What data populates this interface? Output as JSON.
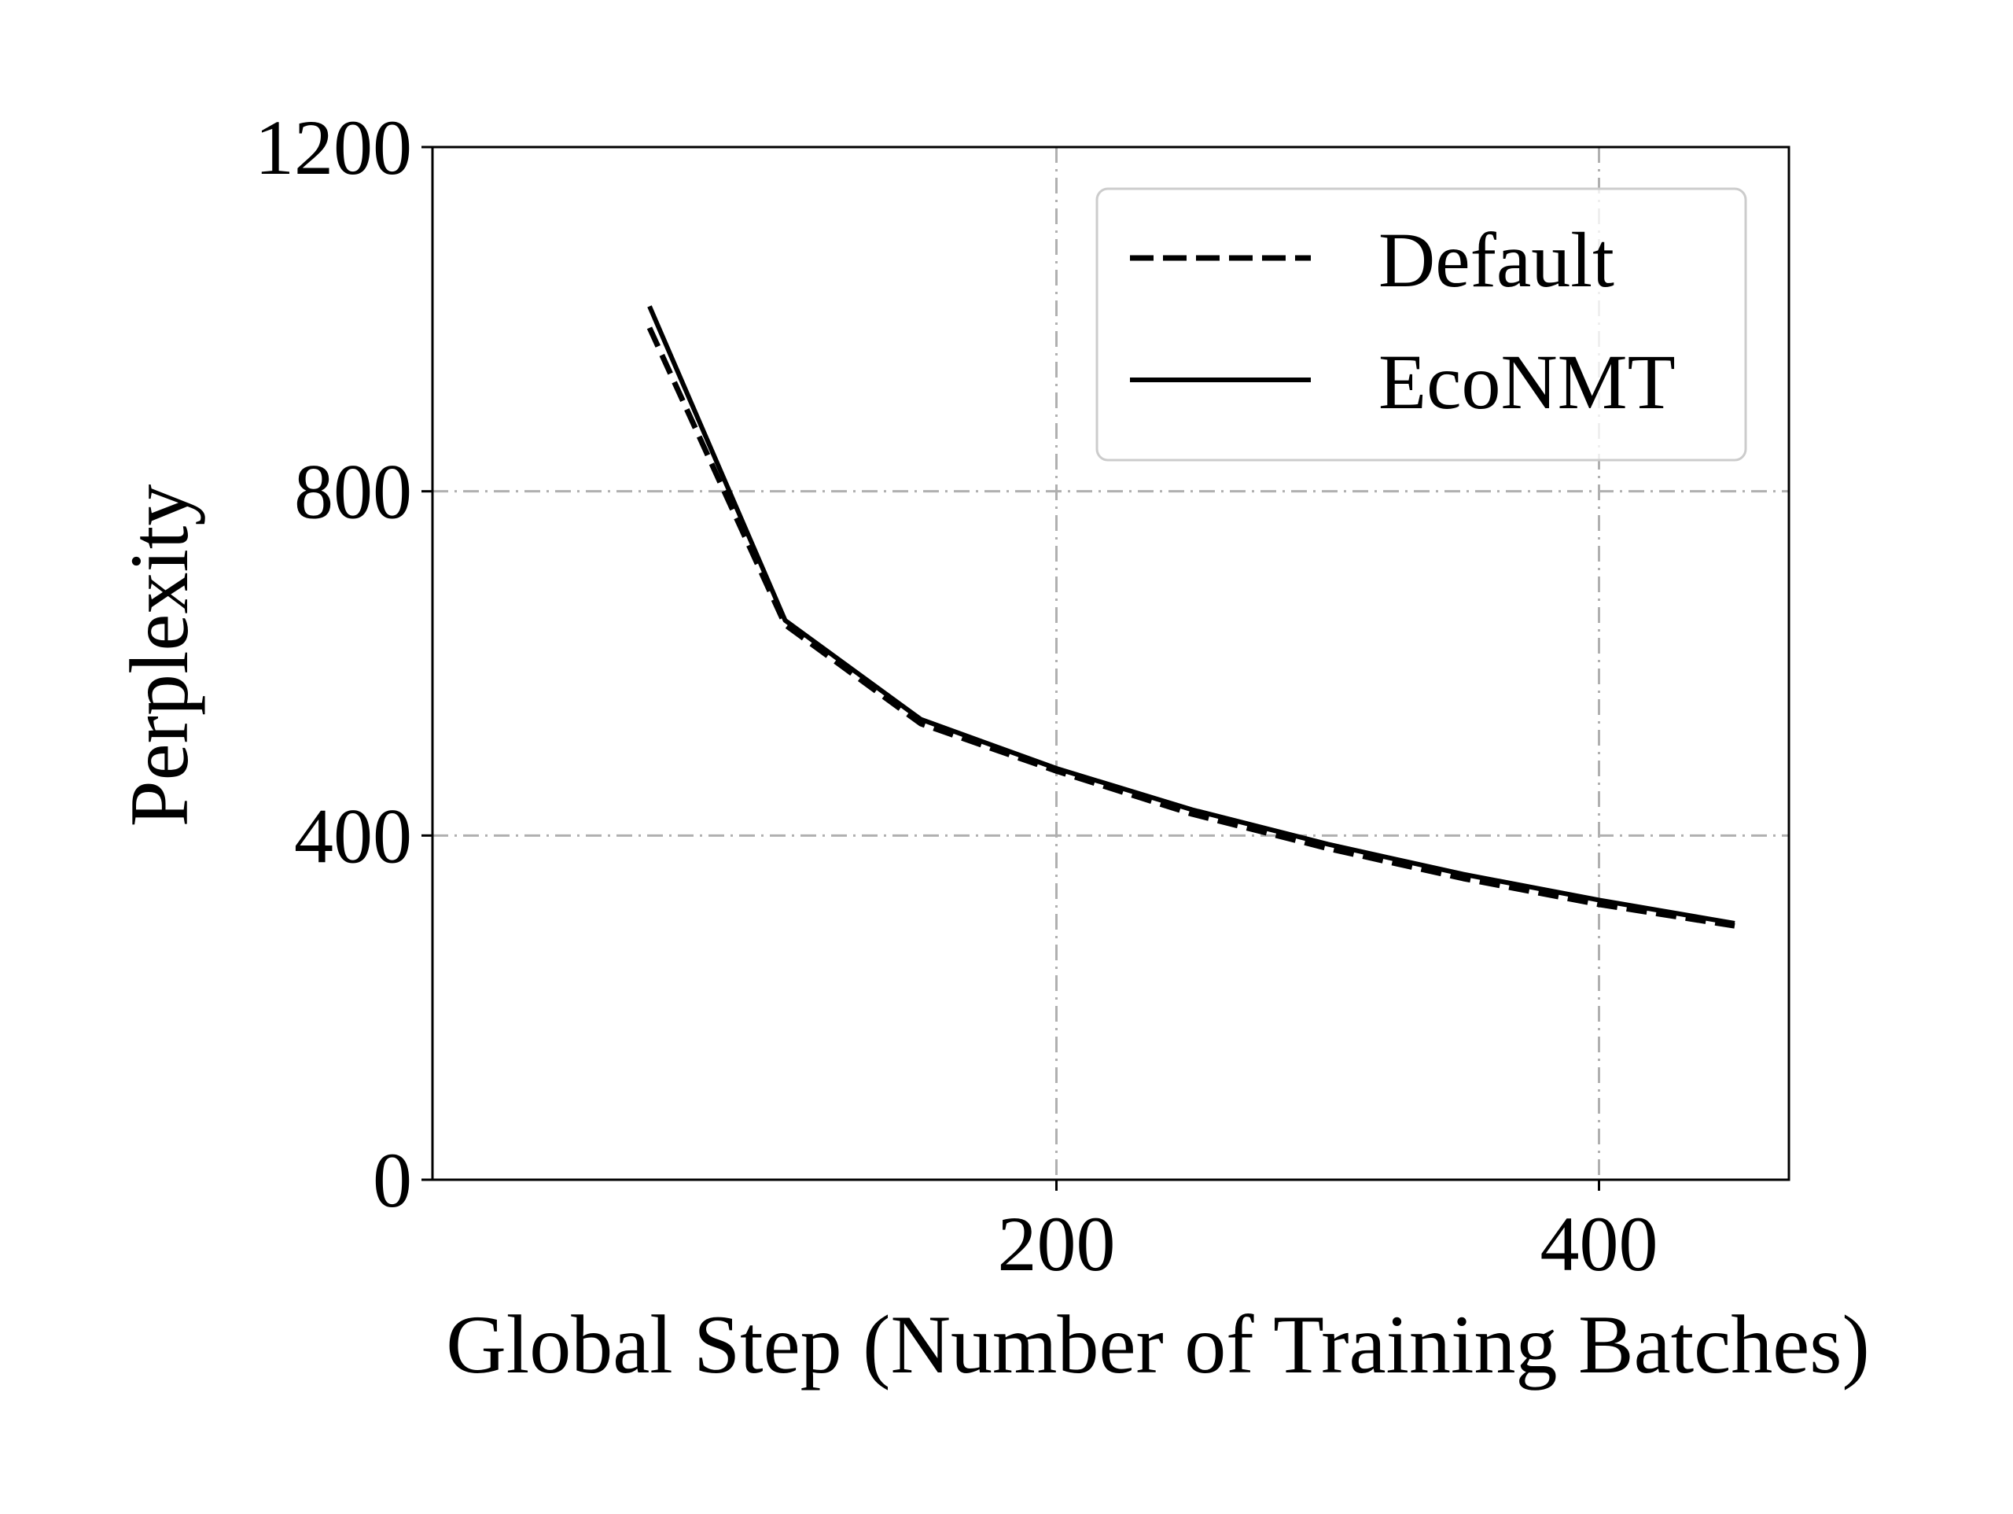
{
  "chart_data": {
    "type": "line",
    "title": "",
    "xlabel": "Global Step (Number of Training Batches)",
    "ylabel": "Perplexity",
    "xlim": [
      -30,
      470
    ],
    "ylim": [
      0,
      1200
    ],
    "xticks": [
      200,
      400
    ],
    "xtick_labels": [
      "200",
      "400"
    ],
    "yticks": [
      0,
      400,
      800,
      1200
    ],
    "ytick_labels": [
      "0",
      "400",
      "800",
      "1200"
    ],
    "grid": true,
    "legend_position": "top-right",
    "series": [
      {
        "name": "Default",
        "style": "dashed",
        "color": "#000000",
        "x": [
          50,
          100,
          150,
          200,
          250,
          300,
          350,
          400,
          450
        ],
        "y": [
          990,
          645,
          530,
          475,
          425,
          385,
          350,
          320,
          295
        ]
      },
      {
        "name": "EcoNMT",
        "style": "solid",
        "color": "#000000",
        "x": [
          50,
          100,
          150,
          200,
          250,
          300,
          350,
          400,
          450
        ],
        "y": [
          1015,
          650,
          535,
          478,
          430,
          390,
          355,
          325,
          298
        ]
      }
    ]
  }
}
